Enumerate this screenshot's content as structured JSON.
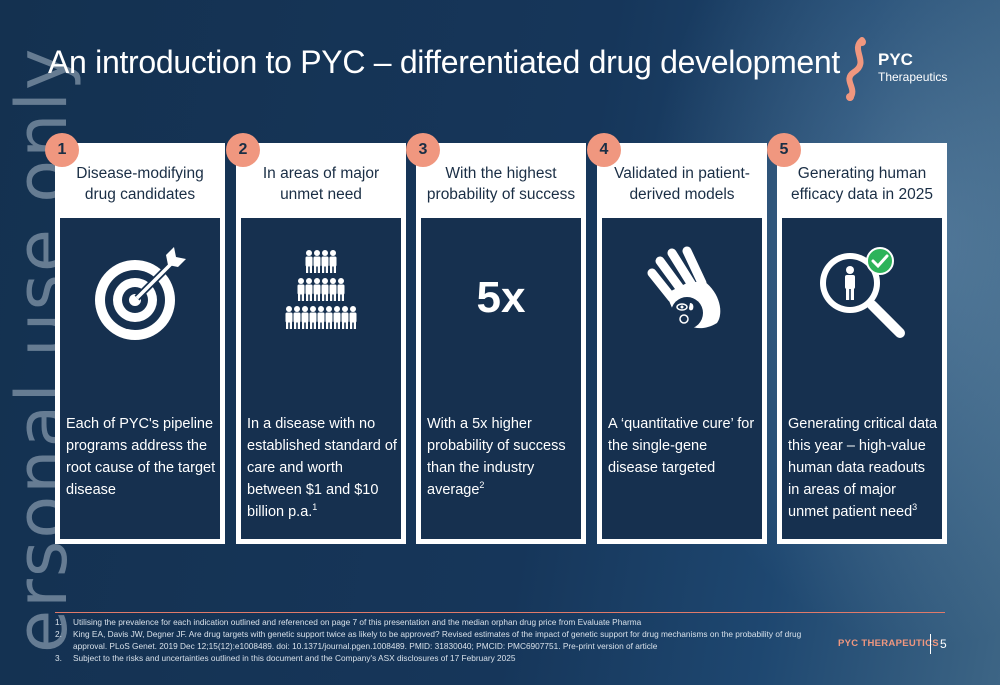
{
  "title": "An introduction to PYC – differentiated drug development",
  "logo": {
    "name": "PYC",
    "sub": "Therapeutics"
  },
  "watermark": "ersonal use only",
  "cards": [
    {
      "number": "1",
      "heading_l1": "Disease-modifying",
      "heading_l2": "drug candidates",
      "icon": "target-arrow-icon",
      "description": "Each of PYC's pipeline programs address the root cause of the target disease",
      "sup": ""
    },
    {
      "number": "2",
      "heading_l1": "In areas of major",
      "heading_l2": "unmet need",
      "icon": "people-pyramid-icon",
      "description": "In a disease with no established standard of care and worth between $1 and $10 billion p.a.",
      "sup": "1"
    },
    {
      "number": "3",
      "heading_l1": "With the highest",
      "heading_l2": "probability of success",
      "icon": "",
      "big_value": "5x",
      "description": "With a 5x higher probability of success than the industry average",
      "sup": "2"
    },
    {
      "number": "4",
      "heading_l1": "Validated in patient-",
      "heading_l2": "derived models",
      "icon": "hand-organs-icon",
      "description": "A ‘quantitative cure’ for the single-gene disease targeted",
      "sup": ""
    },
    {
      "number": "5",
      "heading_l1": "Generating human",
      "heading_l2": "efficacy data in 2025",
      "icon": "magnifier-person-check-icon",
      "description": "Generating critical data this year – high-value human data readouts in areas of major unmet patient need",
      "sup": "3"
    }
  ],
  "footnotes": [
    {
      "n": "1.",
      "text": "Utilising the prevalence for each indication outlined and referenced on page 7 of this presentation and the median orphan drug price from Evaluate Pharma"
    },
    {
      "n": "2.",
      "text": "King EA, Davis JW, Degner JF. Are drug targets with genetic support twice as likely to be approved? Revised estimates of the impact of genetic support for drug mechanisms on the probability of drug approval. PLoS Genet. 2019 Dec 12;15(12):e1008489. doi: 10.1371/journal.pgen.1008489. PMID: 31830040; PMCID: PMC6907751. Pre-print version of article"
    },
    {
      "n": "3.",
      "text": "Subject to the risks and uncertainties outlined in this document and the Company's ASX disclosures of 17 February 2025"
    }
  ],
  "footer": {
    "brand": "PYC THERAPEUTICS",
    "page": "5"
  },
  "colors": {
    "accent": "#f0977f",
    "navy": "#16304f",
    "check": "#2db35a"
  }
}
